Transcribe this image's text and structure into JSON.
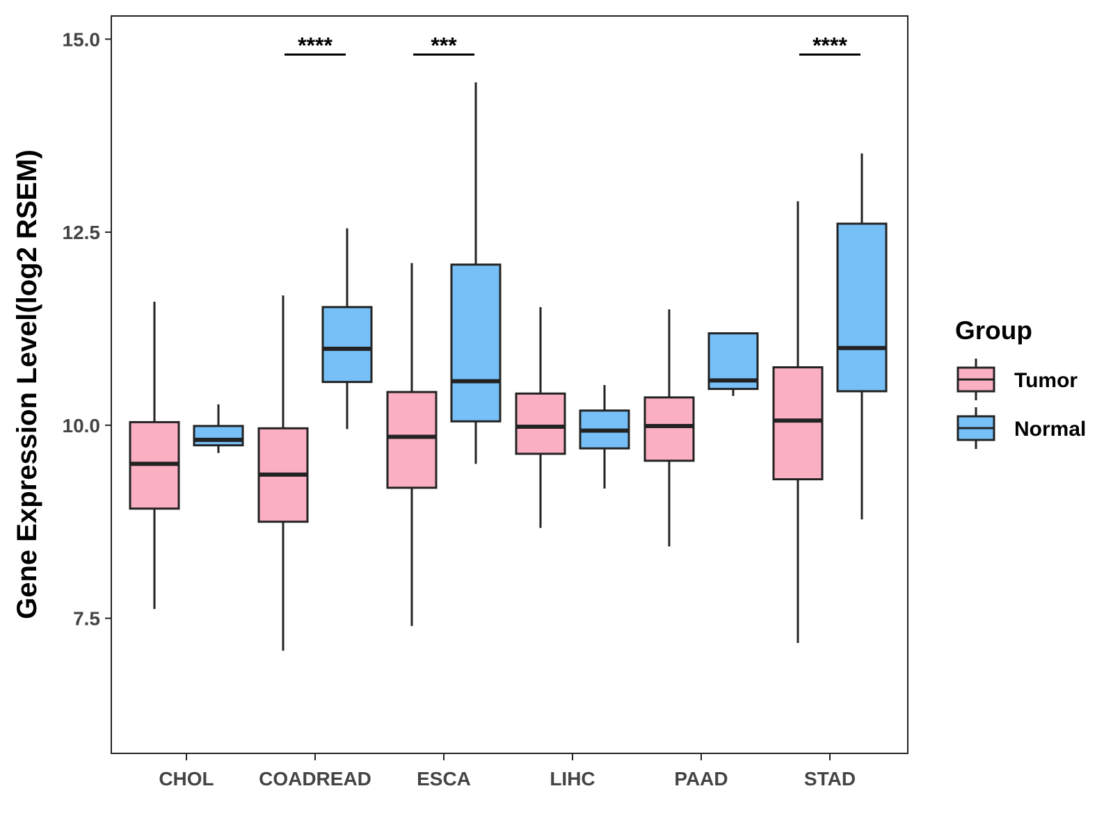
{
  "chart_data": {
    "type": "boxplot",
    "ylabel": "Gene Expression Level(log2 RSEM)",
    "xlabel": "",
    "ylim": [
      5.75,
      15.3
    ],
    "yticks": [
      "7.5",
      "10.0",
      "12.5",
      "15.0"
    ],
    "categories": [
      "CHOL",
      "COADREAD",
      "ESCA",
      "LIHC",
      "PAAD",
      "STAD"
    ],
    "legend": {
      "title": "Group",
      "placement": "right"
    },
    "series": [
      {
        "name": "Tumor",
        "color": "#FAB0C2",
        "boxes": [
          {
            "category": "CHOL",
            "min": 7.62,
            "q1": 8.92,
            "median": 9.5,
            "q3": 10.04,
            "max": 11.6
          },
          {
            "category": "COADREAD",
            "min": 7.08,
            "q1": 8.75,
            "median": 9.36,
            "q3": 9.96,
            "max": 11.68
          },
          {
            "category": "ESCA",
            "min": 7.4,
            "q1": 9.19,
            "median": 9.85,
            "q3": 10.43,
            "max": 12.1
          },
          {
            "category": "LIHC",
            "min": 8.67,
            "q1": 9.63,
            "median": 9.98,
            "q3": 10.41,
            "max": 11.53
          },
          {
            "category": "PAAD",
            "min": 8.43,
            "q1": 9.54,
            "median": 9.99,
            "q3": 10.36,
            "max": 11.5
          },
          {
            "category": "STAD",
            "min": 7.18,
            "q1": 9.3,
            "median": 10.06,
            "q3": 10.75,
            "max": 12.9
          }
        ]
      },
      {
        "name": "Normal",
        "color": "#76C0F7",
        "boxes": [
          {
            "category": "CHOL",
            "min": 9.64,
            "q1": 9.74,
            "median": 9.81,
            "q3": 9.99,
            "max": 10.27
          },
          {
            "category": "COADREAD",
            "min": 9.95,
            "q1": 10.56,
            "median": 10.99,
            "q3": 11.53,
            "max": 12.55
          },
          {
            "category": "ESCA",
            "min": 9.5,
            "q1": 10.05,
            "median": 10.57,
            "q3": 12.08,
            "max": 14.44
          },
          {
            "category": "LIHC",
            "min": 9.18,
            "q1": 9.7,
            "median": 9.93,
            "q3": 10.19,
            "max": 10.52
          },
          {
            "category": "PAAD",
            "min": 10.38,
            "q1": 10.47,
            "median": 10.58,
            "q3": 11.19,
            "max": 11.19
          },
          {
            "category": "STAD",
            "min": 8.78,
            "q1": 10.44,
            "median": 11.0,
            "q3": 12.61,
            "max": 13.52
          }
        ]
      }
    ],
    "annotations": [
      {
        "category": "COADREAD",
        "label": "****"
      },
      {
        "category": "ESCA",
        "label": "***"
      },
      {
        "category": "STAD",
        "label": "****"
      }
    ]
  }
}
